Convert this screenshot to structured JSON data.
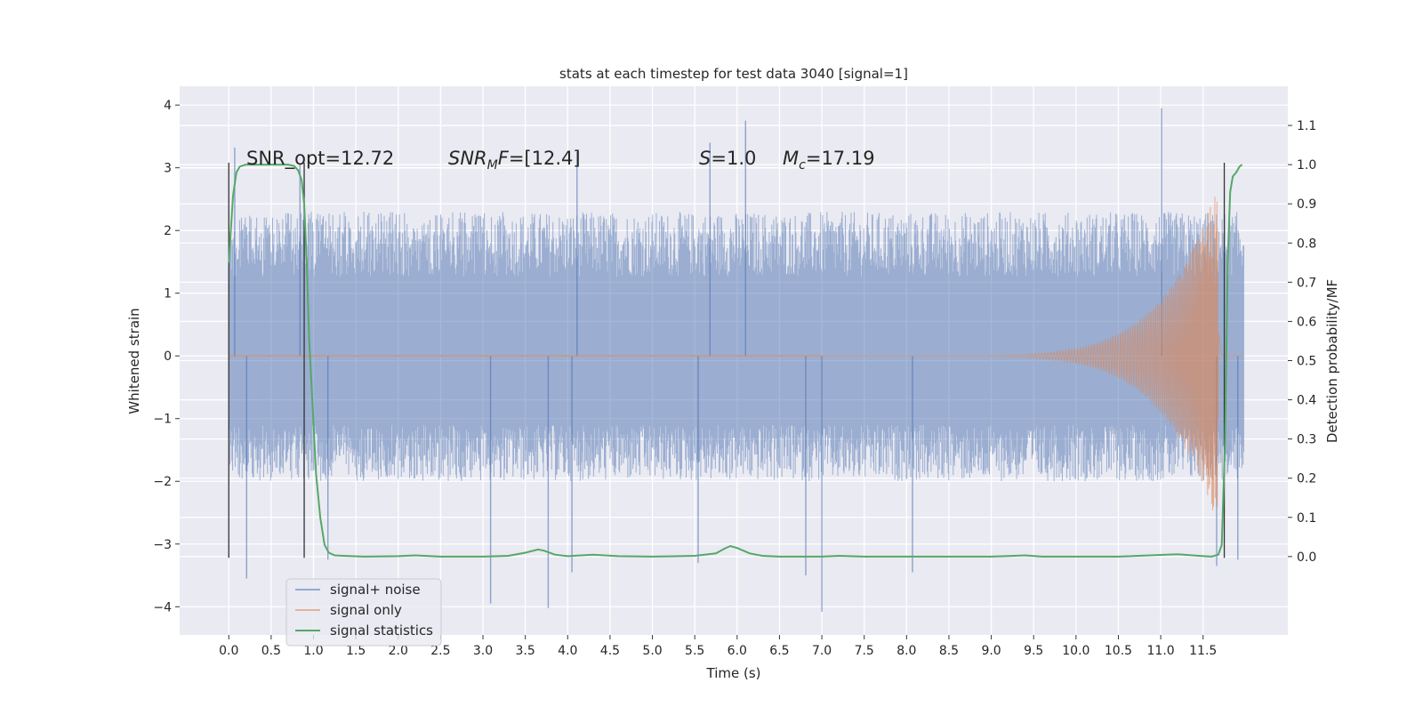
{
  "chart_data": {
    "type": "line",
    "title": "stats at each timestep for test data 3040 [signal=1]",
    "xlabel": "Time (s)",
    "ylabel": "Whitened strain",
    "y2label": "Detection probability/MF",
    "xlim": [
      -0.58,
      12.5
    ],
    "ylim": [
      -4.45,
      4.3
    ],
    "y2lim": [
      -0.2,
      1.2
    ],
    "xticks": [
      "0.0",
      "0.5",
      "1.0",
      "1.5",
      "2.0",
      "2.5",
      "3.0",
      "3.5",
      "4.0",
      "4.5",
      "5.0",
      "5.5",
      "6.0",
      "6.5",
      "7.0",
      "7.5",
      "8.0",
      "8.5",
      "9.0",
      "9.5",
      "10.0",
      "10.5",
      "11.0",
      "11.5"
    ],
    "yticks": [
      "4",
      "3",
      "2",
      "1",
      "0",
      "−1",
      "−2",
      "−3",
      "−4"
    ],
    "y2ticks": [
      "1.1",
      "1.0",
      "0.9",
      "0.8",
      "0.7",
      "0.6",
      "0.5",
      "0.4",
      "0.3",
      "0.2",
      "0.1",
      "0.0"
    ],
    "grid": true,
    "legend_position": "lower-left",
    "colors": {
      "plot_bg": "#eaeaf2",
      "grid": "#ffffff",
      "signal_noise": "#4c72b0",
      "signal_only": "#dd8452",
      "signal_statistics": "#55a868",
      "markers": "#333333"
    },
    "annotations": [
      {
        "pre": "SNR_opt=",
        "val": "12.72"
      },
      {
        "pre": "SNR",
        "sub": "M",
        "mid": "F=",
        "val": "[12.4]"
      },
      {
        "pre": "S",
        "mid": "=",
        "val": "1.0"
      },
      {
        "pre": "M",
        "sub": "c",
        "mid": "=",
        "val": "17.19"
      }
    ],
    "vertical_markers": [
      0.0,
      0.89,
      11.75
    ],
    "noise_envelope": {
      "x": [
        0.0,
        11.98
      ],
      "typical_range": [
        -2.0,
        2.3
      ],
      "peaks": [
        {
          "x": 0.07,
          "y": 3.32
        },
        {
          "x": 0.21,
          "y": -3.55
        },
        {
          "x": 0.84,
          "y": 3.05
        },
        {
          "x": 1.17,
          "y": -3.25
        },
        {
          "x": 3.09,
          "y": -3.95
        },
        {
          "x": 3.77,
          "y": -4.02
        },
        {
          "x": 4.05,
          "y": -3.45
        },
        {
          "x": 4.11,
          "y": 3.25
        },
        {
          "x": 5.54,
          "y": -3.3
        },
        {
          "x": 5.68,
          "y": 3.4
        },
        {
          "x": 6.1,
          "y": 3.75
        },
        {
          "x": 6.81,
          "y": -3.5
        },
        {
          "x": 7.0,
          "y": -4.08
        },
        {
          "x": 8.07,
          "y": -3.45
        },
        {
          "x": 11.01,
          "y": 3.95
        },
        {
          "x": 11.66,
          "y": -3.35
        },
        {
          "x": 11.91,
          "y": -3.25
        }
      ]
    },
    "series": [
      {
        "name": "signal+ noise",
        "kind": "strain"
      },
      {
        "name": "signal only",
        "kind": "chirp",
        "x_start": 7.0,
        "x_peak": 11.67,
        "peak_amplitude": 2.7,
        "x_end": 11.98
      },
      {
        "name": "signal statistics",
        "axis": "right",
        "x": [
          0.0,
          0.02,
          0.05,
          0.09,
          0.13,
          0.2,
          0.35,
          0.6,
          0.7,
          0.77,
          0.82,
          0.86,
          0.89,
          0.92,
          0.95,
          0.99,
          1.03,
          1.08,
          1.13,
          1.18,
          1.25,
          1.35,
          1.6,
          2.0,
          2.2,
          2.5,
          3.0,
          3.3,
          3.5,
          3.65,
          3.72,
          3.85,
          4.0,
          4.3,
          4.6,
          5.0,
          5.5,
          5.75,
          5.85,
          5.92,
          6.0,
          6.15,
          6.3,
          6.5,
          7.0,
          7.2,
          7.5,
          9.0,
          9.4,
          9.6,
          10.5,
          11.2,
          11.45,
          11.6,
          11.65,
          11.68,
          11.72,
          11.76,
          11.79,
          11.82,
          11.85,
          11.89,
          11.93,
          11.96
        ],
        "values": [
          0.75,
          0.82,
          0.92,
          0.98,
          0.995,
          1.0,
          1.0,
          1.0,
          1.0,
          0.997,
          0.985,
          0.96,
          0.9,
          0.75,
          0.55,
          0.38,
          0.21,
          0.1,
          0.03,
          0.01,
          0.003,
          0.002,
          0.0,
          0.001,
          0.003,
          0.0,
          0.0,
          0.002,
          0.01,
          0.018,
          0.015,
          0.005,
          0.001,
          0.005,
          0.001,
          0.0,
          0.002,
          0.008,
          0.02,
          0.027,
          0.022,
          0.008,
          0.002,
          0.0,
          0.0,
          0.002,
          0.0,
          0.0,
          0.003,
          0.0,
          0.0,
          0.006,
          0.002,
          0.0,
          0.003,
          0.005,
          0.03,
          0.3,
          0.75,
          0.93,
          0.97,
          0.98,
          0.995,
          1.0
        ]
      }
    ]
  }
}
